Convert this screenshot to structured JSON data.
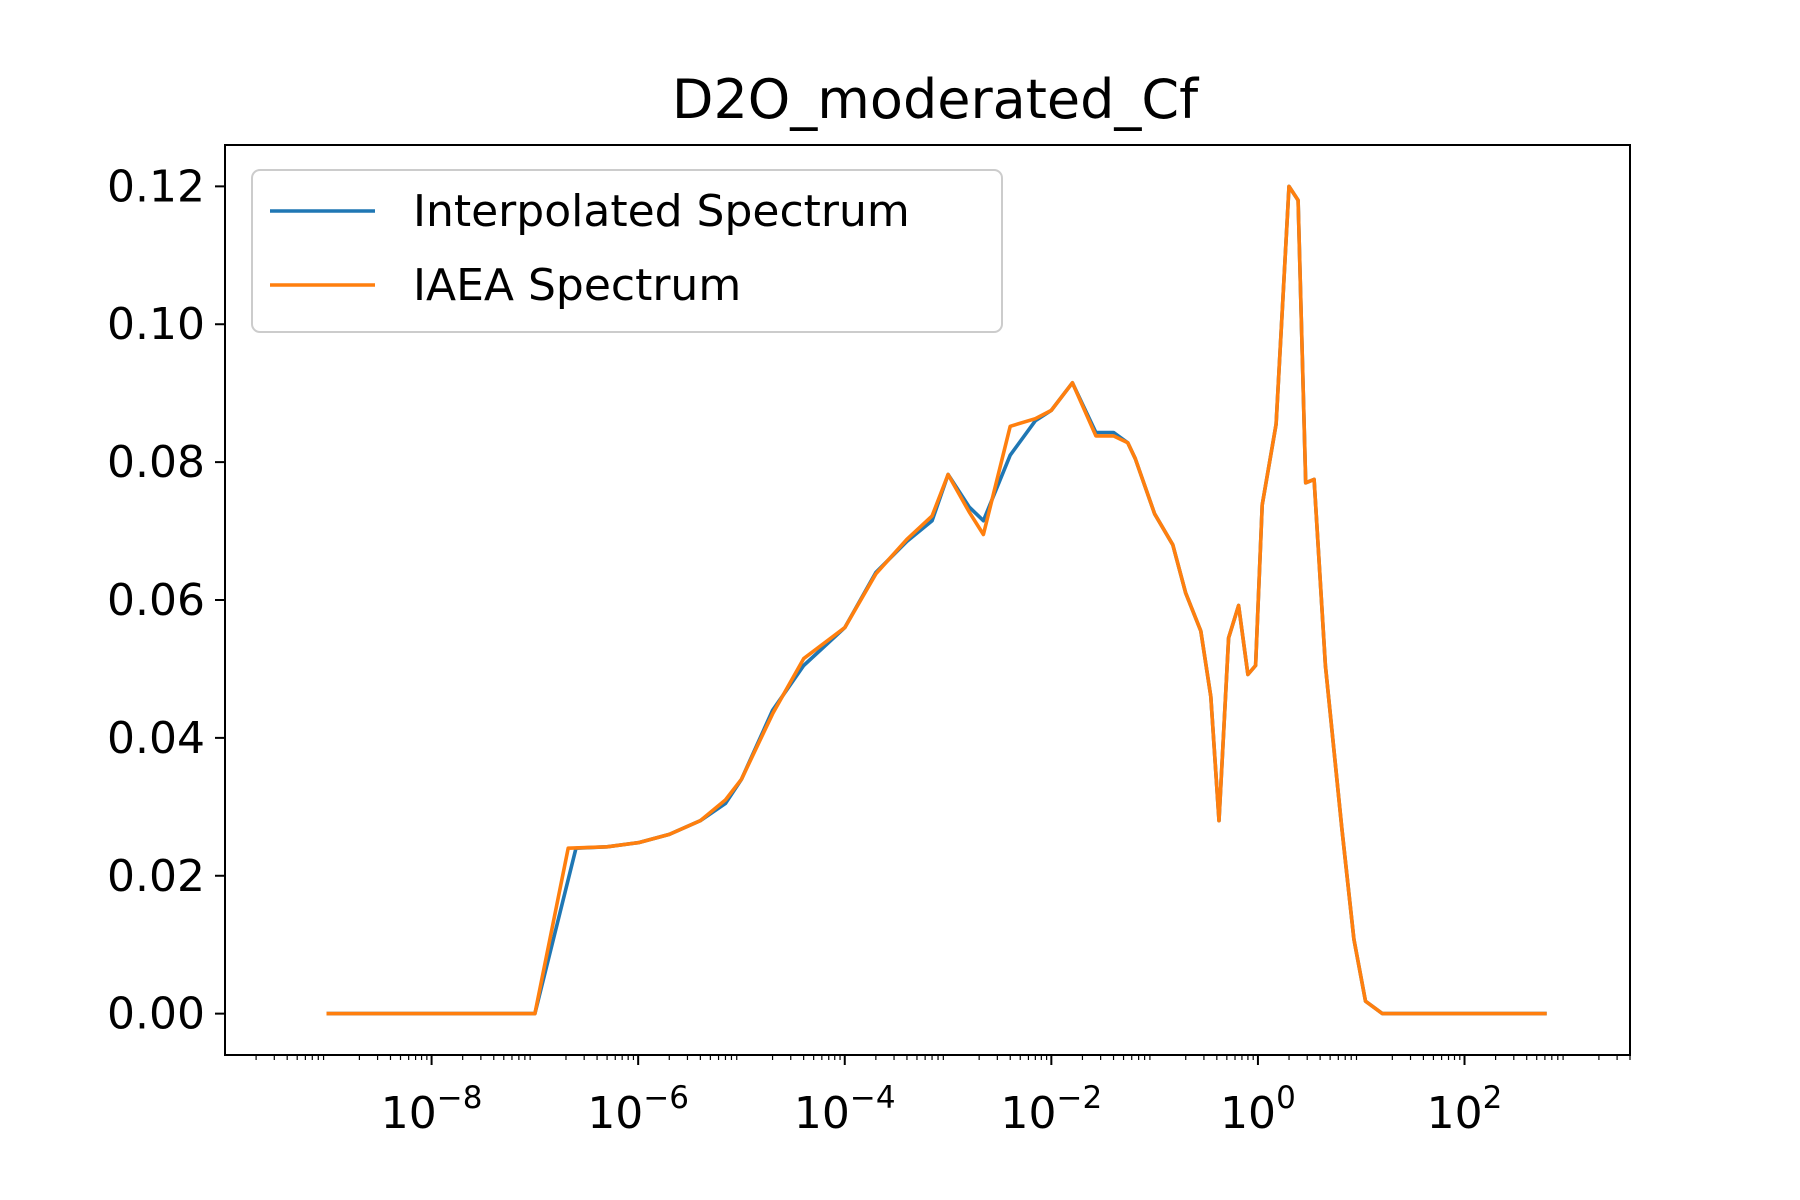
{
  "chart_data": {
    "type": "line",
    "title": "D2O_moderated_Cf",
    "xlabel": "",
    "ylabel": "",
    "x_scale": "log",
    "xlim": [
      1e-10,
      4000
    ],
    "ylim": [
      -0.006,
      0.126
    ],
    "grid": false,
    "legend_position": "top-left",
    "x_ticks": [
      {
        "value": 1e-08,
        "base": "10",
        "exp": "−8"
      },
      {
        "value": 1e-06,
        "base": "10",
        "exp": "−6"
      },
      {
        "value": 0.0001,
        "base": "10",
        "exp": "−4"
      },
      {
        "value": 0.01,
        "base": "10",
        "exp": "−2"
      },
      {
        "value": 1,
        "base": "10",
        "exp": "0"
      },
      {
        "value": 100,
        "base": "10",
        "exp": "2"
      }
    ],
    "y_ticks": [
      {
        "value": 0.0,
        "label": "0.00"
      },
      {
        "value": 0.02,
        "label": "0.02"
      },
      {
        "value": 0.04,
        "label": "0.04"
      },
      {
        "value": 0.06,
        "label": "0.06"
      },
      {
        "value": 0.08,
        "label": "0.08"
      },
      {
        "value": 0.1,
        "label": "0.10"
      },
      {
        "value": 0.12,
        "label": "0.12"
      }
    ],
    "series": [
      {
        "name": "Interpolated Spectrum",
        "color": "#1f77b4",
        "x": [
          1e-09,
          1e-08,
          1e-07,
          2.5e-07,
          5e-07,
          1e-06,
          2e-06,
          4e-06,
          7e-06,
          1e-05,
          2e-05,
          4e-05,
          0.0001,
          0.0002,
          0.0004,
          0.0007,
          0.001,
          0.0016,
          0.0022,
          0.004,
          0.007,
          0.01,
          0.016,
          0.027,
          0.04,
          0.055,
          0.065,
          0.1,
          0.15,
          0.2,
          0.28,
          0.35,
          0.42,
          0.52,
          0.65,
          0.8,
          0.95,
          1.1,
          1.5,
          2.0,
          2.45,
          2.9,
          3.5,
          4.5,
          6.5,
          8.5,
          11,
          16,
          100,
          600
        ],
        "y": [
          0,
          0,
          0,
          0.024,
          0.0242,
          0.0248,
          0.026,
          0.028,
          0.0305,
          0.034,
          0.044,
          0.0505,
          0.056,
          0.064,
          0.0685,
          0.0715,
          0.0782,
          0.0735,
          0.0715,
          0.081,
          0.086,
          0.0875,
          0.0915,
          0.0843,
          0.0843,
          0.0828,
          0.0805,
          0.0725,
          0.068,
          0.061,
          0.0555,
          0.046,
          0.028,
          0.0545,
          0.0592,
          0.0492,
          0.0505,
          0.0738,
          0.0855,
          0.12,
          0.118,
          0.077,
          0.0775,
          0.0505,
          0.0268,
          0.0108,
          0.0018,
          0.0,
          0.0,
          0.0
        ]
      },
      {
        "name": "IAEA Spectrum",
        "color": "#ff7f0e",
        "x": [
          1e-09,
          1e-08,
          1e-07,
          2.1e-07,
          5e-07,
          1e-06,
          2e-06,
          4e-06,
          7e-06,
          1e-05,
          2e-05,
          4e-05,
          0.0001,
          0.0002,
          0.0004,
          0.0007,
          0.001,
          0.0016,
          0.0022,
          0.004,
          0.007,
          0.01,
          0.016,
          0.027,
          0.04,
          0.055,
          0.065,
          0.1,
          0.15,
          0.2,
          0.28,
          0.35,
          0.42,
          0.52,
          0.65,
          0.8,
          0.95,
          1.1,
          1.5,
          2.0,
          2.45,
          2.9,
          3.5,
          4.5,
          6.5,
          8.5,
          11,
          16,
          100,
          600
        ],
        "y": [
          0,
          0,
          0,
          0.024,
          0.0242,
          0.0248,
          0.026,
          0.028,
          0.031,
          0.034,
          0.0435,
          0.0515,
          0.056,
          0.0638,
          0.0688,
          0.0722,
          0.0782,
          0.0728,
          0.0695,
          0.0852,
          0.0863,
          0.0875,
          0.0915,
          0.0838,
          0.0838,
          0.0828,
          0.0805,
          0.0725,
          0.068,
          0.061,
          0.0555,
          0.046,
          0.028,
          0.0545,
          0.0592,
          0.0492,
          0.0505,
          0.0738,
          0.0855,
          0.12,
          0.118,
          0.077,
          0.0775,
          0.0505,
          0.0268,
          0.0108,
          0.0018,
          0.0,
          0.0,
          0.0
        ]
      }
    ]
  }
}
